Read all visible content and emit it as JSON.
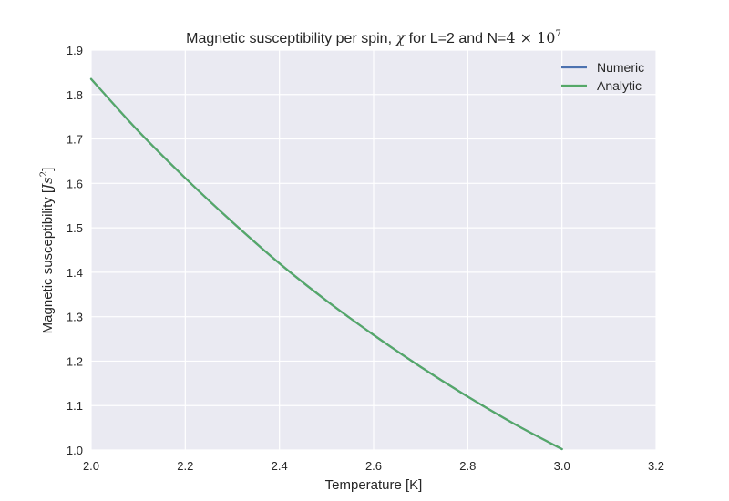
{
  "chart_data": {
    "type": "line",
    "title": {
      "prefix": "Magnetic susceptibility per spin, ",
      "symbol": "χ",
      "middle": " for L=2 and N=",
      "math_base": "4 × 10",
      "math_exp": "7"
    },
    "xlabel": "Temperature [K]",
    "ylabel": {
      "prefix": "Magnetic susceptibility [",
      "math": "Js",
      "exp": "2",
      "suffix": "]"
    },
    "xlim": [
      2.0,
      3.2
    ],
    "ylim": [
      1.0,
      1.9
    ],
    "xticks": [
      "2.0",
      "2.2",
      "2.4",
      "2.6",
      "2.8",
      "3.0",
      "3.2"
    ],
    "yticks": [
      "1.0",
      "1.1",
      "1.2",
      "1.3",
      "1.4",
      "1.5",
      "1.6",
      "1.7",
      "1.8",
      "1.9"
    ],
    "grid": true,
    "legend_position": "top-right",
    "series": [
      {
        "name": "Numeric",
        "color": "#4c72b0",
        "x": [
          2.0,
          2.1,
          2.2,
          2.3,
          2.4,
          2.5,
          2.6,
          2.7,
          2.8,
          2.9,
          3.0
        ],
        "y": [
          1.835,
          1.718,
          1.612,
          1.513,
          1.42,
          1.336,
          1.259,
          1.187,
          1.12,
          1.058,
          1.002
        ]
      },
      {
        "name": "Analytic",
        "color": "#55a868",
        "x": [
          2.0,
          2.1,
          2.2,
          2.3,
          2.4,
          2.5,
          2.6,
          2.7,
          2.8,
          2.9,
          3.0
        ],
        "y": [
          1.835,
          1.718,
          1.612,
          1.513,
          1.42,
          1.336,
          1.259,
          1.187,
          1.12,
          1.058,
          1.002
        ]
      }
    ]
  },
  "colors": {
    "plot_background": "#eaeaf2",
    "grid": "#ffffff"
  }
}
